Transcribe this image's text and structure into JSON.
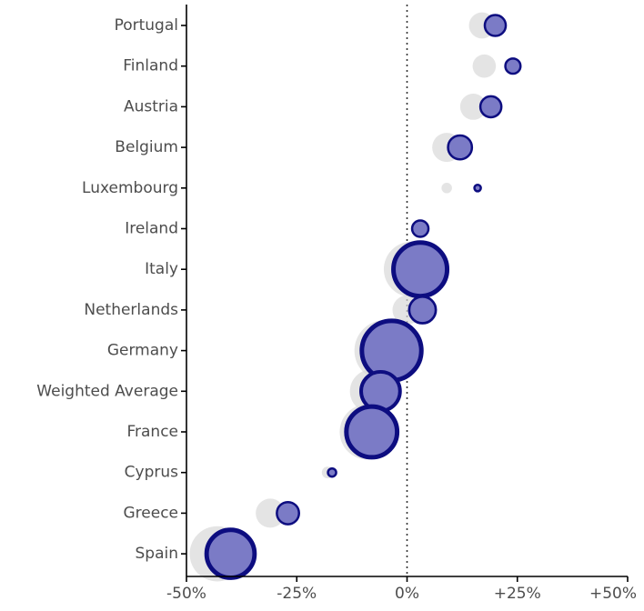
{
  "chart_data": {
    "type": "scatter",
    "title": "",
    "xlabel": "",
    "ylabel": "",
    "xlim": [
      -0.5,
      0.5
    ],
    "x_ticks": [
      -0.5,
      -0.25,
      0,
      0.25,
      0.5
    ],
    "x_tick_labels": [
      "-50%",
      "-25%",
      "0%",
      "+25%",
      "+50%"
    ],
    "reference_line": {
      "x": 0,
      "style": "dotted"
    },
    "grid": false,
    "colors": {
      "previous_fill": "#d9d9d9",
      "current_fill": "#7b7bc6",
      "current_stroke": "#0d0d80"
    },
    "categories": [
      "Portugal",
      "Finland",
      "Austria",
      "Belgium",
      "Luxembourg",
      "Ireland",
      "Italy",
      "Netherlands",
      "Germany",
      "Weighted Average",
      "France",
      "Cyprus",
      "Greece",
      "Spain"
    ],
    "series": [
      {
        "role": "previous",
        "values": [
          0.17,
          0.175,
          0.15,
          0.09,
          0.09,
          0.03,
          0.01,
          0.0,
          -0.05,
          -0.08,
          -0.09,
          -0.18,
          -0.31,
          -0.43
        ],
        "sizes": [
          0.45,
          0.4,
          0.45,
          0.5,
          0.18,
          0.3,
          0.95,
          0.5,
          1.05,
          0.75,
          0.95,
          0.2,
          0.5,
          0.95
        ]
      },
      {
        "role": "current",
        "values": [
          0.2,
          0.24,
          0.19,
          0.12,
          0.16,
          0.03,
          0.03,
          0.035,
          -0.035,
          -0.06,
          -0.08,
          -0.17,
          -0.27,
          -0.4
        ],
        "sizes": [
          0.4,
          0.3,
          0.4,
          0.45,
          0.15,
          0.32,
          1.0,
          0.5,
          1.1,
          0.73,
          0.95,
          0.18,
          0.42,
          0.9
        ]
      }
    ]
  }
}
